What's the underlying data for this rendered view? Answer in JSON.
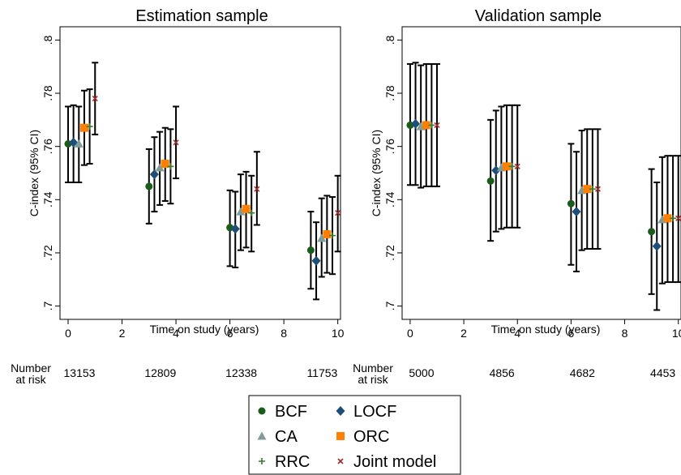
{
  "legend": {
    "entries": [
      {
        "name": "BCF",
        "marker": "circle",
        "color": "#1a5c1a"
      },
      {
        "name": "LOCF",
        "marker": "diamond",
        "color": "#1f4e79"
      },
      {
        "name": "CA",
        "marker": "triangle",
        "color": "#7f9c9c"
      },
      {
        "name": "ORC",
        "marker": "square",
        "color": "#ff8000"
      },
      {
        "name": "RRC",
        "marker": "plus",
        "color": "#3a7a2a"
      },
      {
        "name": "Joint model",
        "marker": "x",
        "color": "#a52a2a"
      }
    ]
  },
  "risk_label_line1": "Number",
  "risk_label_line2": "at risk",
  "chart_data": [
    {
      "type": "scatter",
      "title": "Estimation sample",
      "xlabel": "Time on study (years)",
      "ylabel": "C-index  (95% CI)",
      "xlim": [
        -0.3,
        10.1
      ],
      "ylim": [
        0.695,
        0.805
      ],
      "xticks": [
        0,
        2,
        4,
        6,
        8,
        10
      ],
      "xtick_labels": [
        "0",
        "2",
        "4",
        "6",
        "8",
        "10"
      ],
      "yticks": [
        0.7,
        0.72,
        0.74,
        0.76,
        0.78,
        0.8
      ],
      "ytick_labels": [
        ".7",
        ".72",
        ".74",
        ".76",
        ".78",
        ".8"
      ],
      "errorbars": true,
      "grid": false,
      "number_at_risk": {
        "times": [
          0,
          3,
          6,
          9
        ],
        "values": [
          "13153",
          "12809",
          "12338",
          "11753"
        ]
      },
      "series": [
        {
          "name": "BCF",
          "points": [
            {
              "x": 0.0,
              "y": 0.761,
              "lo": 0.7465,
              "hi": 0.775
            },
            {
              "x": 3.0,
              "y": 0.745,
              "lo": 0.731,
              "hi": 0.759
            },
            {
              "x": 6.0,
              "y": 0.7295,
              "lo": 0.715,
              "hi": 0.7435
            },
            {
              "x": 9.0,
              "y": 0.721,
              "lo": 0.7065,
              "hi": 0.7355
            }
          ]
        },
        {
          "name": "LOCF",
          "points": [
            {
              "x": 0.2,
              "y": 0.7615,
              "lo": 0.7465,
              "hi": 0.7755
            },
            {
              "x": 3.2,
              "y": 0.7495,
              "lo": 0.7355,
              "hi": 0.7635
            },
            {
              "x": 6.2,
              "y": 0.729,
              "lo": 0.7145,
              "hi": 0.743
            },
            {
              "x": 9.2,
              "y": 0.717,
              "lo": 0.7025,
              "hi": 0.7315
            }
          ]
        },
        {
          "name": "CA",
          "points": [
            {
              "x": 0.4,
              "y": 0.761,
              "lo": 0.7465,
              "hi": 0.775
            },
            {
              "x": 3.4,
              "y": 0.752,
              "lo": 0.738,
              "hi": 0.7655
            },
            {
              "x": 6.4,
              "y": 0.7355,
              "lo": 0.721,
              "hi": 0.7495
            },
            {
              "x": 9.4,
              "y": 0.7255,
              "lo": 0.711,
              "hi": 0.7405
            }
          ]
        },
        {
          "name": "ORC",
          "points": [
            {
              "x": 0.6,
              "y": 0.767,
              "lo": 0.753,
              "hi": 0.781
            },
            {
              "x": 3.6,
              "y": 0.7535,
              "lo": 0.7395,
              "hi": 0.767
            },
            {
              "x": 6.6,
              "y": 0.7365,
              "lo": 0.722,
              "hi": 0.7505
            },
            {
              "x": 9.6,
              "y": 0.727,
              "lo": 0.7125,
              "hi": 0.7415
            }
          ]
        },
        {
          "name": "RRC",
          "points": [
            {
              "x": 0.8,
              "y": 0.7675,
              "lo": 0.7535,
              "hi": 0.7815
            },
            {
              "x": 3.8,
              "y": 0.7525,
              "lo": 0.7385,
              "hi": 0.7665
            },
            {
              "x": 6.8,
              "y": 0.735,
              "lo": 0.7205,
              "hi": 0.749
            },
            {
              "x": 9.8,
              "y": 0.7265,
              "lo": 0.712,
              "hi": 0.741
            }
          ]
        },
        {
          "name": "Joint model",
          "points": [
            {
              "x": 1.0,
              "y": 0.778,
              "lo": 0.7645,
              "hi": 0.7915
            },
            {
              "x": 4.0,
              "y": 0.7615,
              "lo": 0.748,
              "hi": 0.775
            },
            {
              "x": 7.0,
              "y": 0.744,
              "lo": 0.7305,
              "hi": 0.758
            },
            {
              "x": 10.0,
              "y": 0.735,
              "lo": 0.7205,
              "hi": 0.749
            }
          ]
        }
      ]
    },
    {
      "type": "scatter",
      "title": "Validation sample",
      "xlabel": "Time on study (years)",
      "ylabel": "C-index  (95% CI)",
      "xlim": [
        -0.3,
        10.1
      ],
      "ylim": [
        0.695,
        0.805
      ],
      "xticks": [
        0,
        2,
        4,
        6,
        8,
        10
      ],
      "xtick_labels": [
        "0",
        "2",
        "4",
        "6",
        "8",
        "10"
      ],
      "yticks": [
        0.7,
        0.72,
        0.74,
        0.76,
        0.78,
        0.8
      ],
      "ytick_labels": [
        ".7",
        ".72",
        ".74",
        ".76",
        ".78",
        ".8"
      ],
      "errorbars": true,
      "grid": false,
      "number_at_risk": {
        "times": [
          0,
          3,
          6,
          9
        ],
        "values": [
          "5000",
          "4856",
          "4682",
          "4453"
        ]
      },
      "series": [
        {
          "name": "BCF",
          "points": [
            {
              "x": 0.0,
              "y": 0.768,
              "lo": 0.7455,
              "hi": 0.791
            },
            {
              "x": 3.0,
              "y": 0.747,
              "lo": 0.7245,
              "hi": 0.77
            },
            {
              "x": 6.0,
              "y": 0.7385,
              "lo": 0.7155,
              "hi": 0.761
            },
            {
              "x": 9.0,
              "y": 0.728,
              "lo": 0.7045,
              "hi": 0.7515
            }
          ]
        },
        {
          "name": "LOCF",
          "points": [
            {
              "x": 0.2,
              "y": 0.7685,
              "lo": 0.7455,
              "hi": 0.7915
            },
            {
              "x": 3.2,
              "y": 0.751,
              "lo": 0.728,
              "hi": 0.7735
            },
            {
              "x": 6.2,
              "y": 0.7355,
              "lo": 0.713,
              "hi": 0.758
            },
            {
              "x": 9.2,
              "y": 0.7225,
              "lo": 0.6985,
              "hi": 0.7465
            }
          ]
        },
        {
          "name": "CA",
          "points": [
            {
              "x": 0.4,
              "y": 0.7675,
              "lo": 0.7445,
              "hi": 0.7905
            },
            {
              "x": 3.4,
              "y": 0.752,
              "lo": 0.729,
              "hi": 0.775
            },
            {
              "x": 6.4,
              "y": 0.7435,
              "lo": 0.721,
              "hi": 0.766
            },
            {
              "x": 9.4,
              "y": 0.7325,
              "lo": 0.7085,
              "hi": 0.756
            }
          ]
        },
        {
          "name": "ORC",
          "points": [
            {
              "x": 0.6,
              "y": 0.768,
              "lo": 0.745,
              "hi": 0.791
            },
            {
              "x": 3.6,
              "y": 0.7525,
              "lo": 0.7295,
              "hi": 0.7755
            },
            {
              "x": 6.6,
              "y": 0.744,
              "lo": 0.7215,
              "hi": 0.7665
            },
            {
              "x": 9.6,
              "y": 0.733,
              "lo": 0.709,
              "hi": 0.7565
            }
          ]
        },
        {
          "name": "RRC",
          "points": [
            {
              "x": 0.8,
              "y": 0.768,
              "lo": 0.745,
              "hi": 0.791
            },
            {
              "x": 3.8,
              "y": 0.7525,
              "lo": 0.7295,
              "hi": 0.7755
            },
            {
              "x": 6.8,
              "y": 0.744,
              "lo": 0.7215,
              "hi": 0.7665
            },
            {
              "x": 9.8,
              "y": 0.733,
              "lo": 0.709,
              "hi": 0.7565
            }
          ]
        },
        {
          "name": "Joint model",
          "points": [
            {
              "x": 1.0,
              "y": 0.768,
              "lo": 0.745,
              "hi": 0.791
            },
            {
              "x": 4.0,
              "y": 0.7525,
              "lo": 0.7295,
              "hi": 0.7755
            },
            {
              "x": 7.0,
              "y": 0.744,
              "lo": 0.7215,
              "hi": 0.7665
            },
            {
              "x": 10.0,
              "y": 0.733,
              "lo": 0.709,
              "hi": 0.7565
            }
          ]
        }
      ]
    }
  ]
}
